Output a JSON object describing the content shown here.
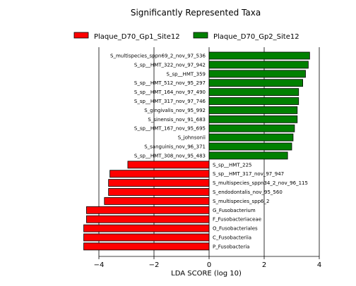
{
  "chart_data": {
    "type": "bar",
    "orientation": "horizontal",
    "title": "Significantly Represented Taxa",
    "xlabel": "LDA SCORE (log 10)",
    "ylabel": "",
    "xlim": [
      -5.0,
      4.0
    ],
    "xticks": [
      -4,
      -2,
      0,
      2,
      4
    ],
    "grid": true,
    "legend_position": "top",
    "series": [
      {
        "name": "Plaque_D70_Gp1_Site12",
        "color": "#ff0000"
      },
      {
        "name": "Plaque_D70_Gp2_Site12",
        "color": "#008000"
      }
    ],
    "bars": [
      {
        "label": "S_multispecies_sppn69_2_nov_97_536",
        "value": 3.65,
        "group": 1
      },
      {
        "label": "S_sp__HMT_322_nov_97_942",
        "value": 3.6,
        "group": 1
      },
      {
        "label": "S_sp__HMT_359",
        "value": 3.5,
        "group": 1
      },
      {
        "label": "S_sp__HMT_512_nov_95_297",
        "value": 3.4,
        "group": 1
      },
      {
        "label": "S_sp__HMT_164_nov_97_490",
        "value": 3.25,
        "group": 1
      },
      {
        "label": "S_sp__HMT_317_nov_97_746",
        "value": 3.25,
        "group": 1
      },
      {
        "label": "S_gingivalis_nov_95_992",
        "value": 3.2,
        "group": 1
      },
      {
        "label": "S_sinensis_nov_91_683",
        "value": 3.2,
        "group": 1
      },
      {
        "label": "S_sp__HMT_167_nov_95_695",
        "value": 3.1,
        "group": 1
      },
      {
        "label": "S_johnsonii",
        "value": 3.05,
        "group": 1
      },
      {
        "label": "S_sanguinis_nov_96_371",
        "value": 3.0,
        "group": 1
      },
      {
        "label": "S_sp__HMT_308_nov_95_483",
        "value": 2.85,
        "group": 1
      },
      {
        "label": "S_sp__HMT_225",
        "value": -2.95,
        "group": 0
      },
      {
        "label": "S_sp__HMT_317_nov_97_947",
        "value": -3.6,
        "group": 0
      },
      {
        "label": "S_multispecies_sppn34_2_nov_96_115",
        "value": -3.65,
        "group": 0
      },
      {
        "label": "S_endodontalis_nov_95_560",
        "value": -3.65,
        "group": 0
      },
      {
        "label": "S_multispecies_spp6_2",
        "value": -3.8,
        "group": 0
      },
      {
        "label": "G_Fusobacterium",
        "value": -4.45,
        "group": 0
      },
      {
        "label": "F_Fusobacteriaceae",
        "value": -4.45,
        "group": 0
      },
      {
        "label": "O_Fusobacteriales",
        "value": -4.55,
        "group": 0
      },
      {
        "label": "C_Fusobacteriia",
        "value": -4.55,
        "group": 0
      },
      {
        "label": "P_Fusobacteria",
        "value": -4.55,
        "group": 0
      }
    ]
  }
}
